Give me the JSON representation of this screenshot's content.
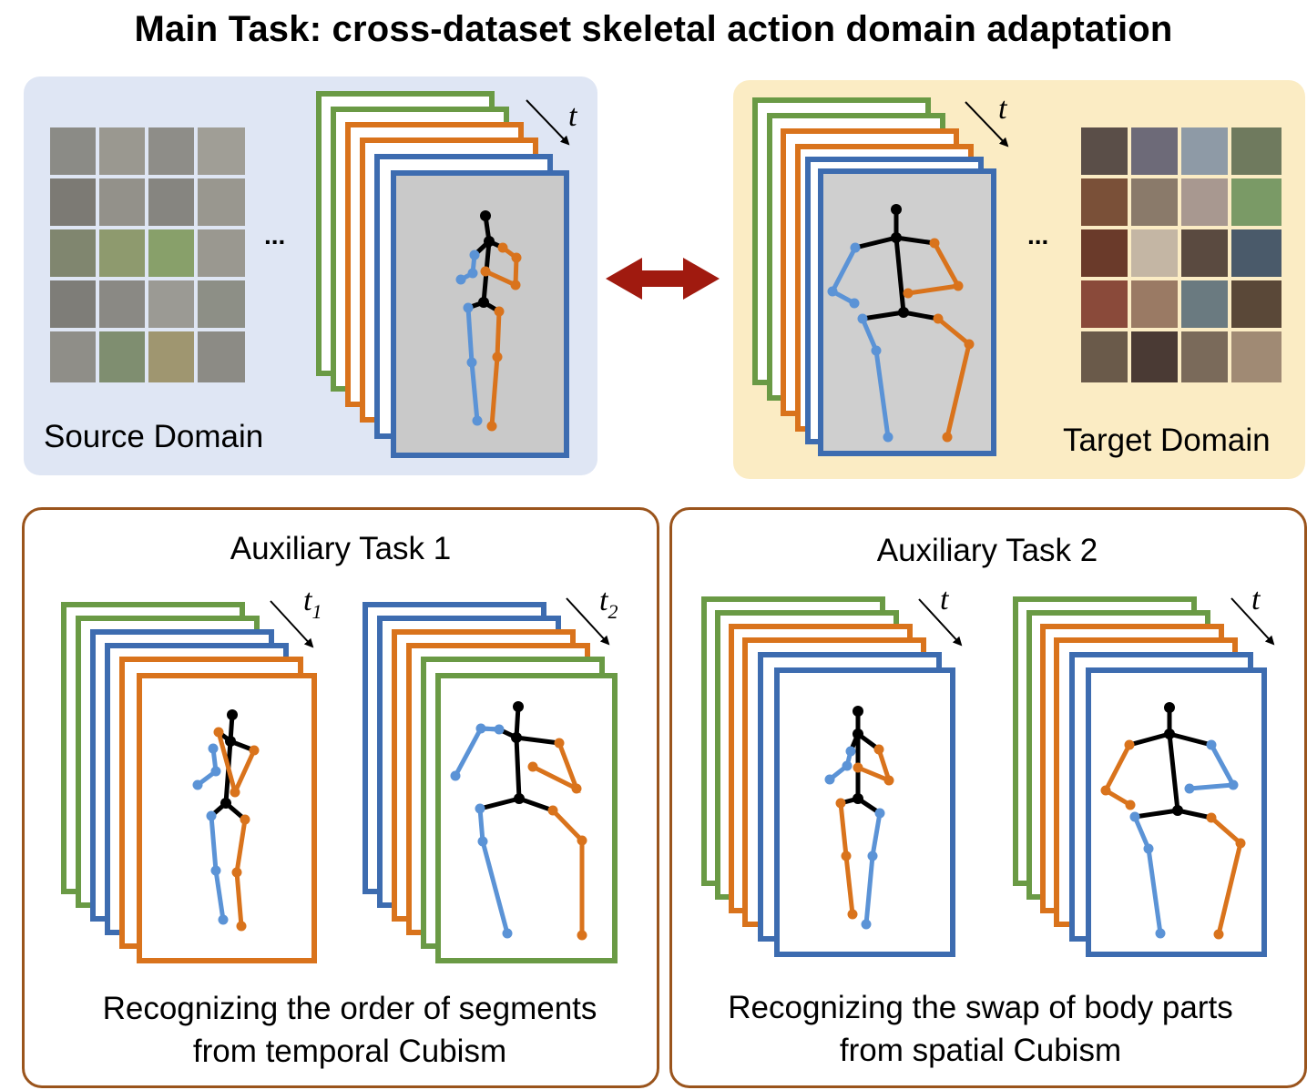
{
  "title": "Main Task: cross-dataset skeletal action domain adaptation",
  "main": {
    "source_label": "Source Domain",
    "target_label": "Target Domain",
    "ellipsis": "...",
    "time_symbol": "t"
  },
  "aux1": {
    "title": "Auxiliary Task 1",
    "caption_line1": "Recognizing the order of segments",
    "caption_line2": "from temporal Cubism",
    "time_symbol_a": "t",
    "time_sub_a": "1",
    "time_symbol_b": "t",
    "time_sub_b": "2"
  },
  "aux2": {
    "title": "Auxiliary Task 2",
    "caption_line1": "Recognizing the swap of body parts",
    "caption_line2": "from spatial Cubism",
    "time_symbol": "t"
  },
  "colors": {
    "green": "#6a9a45",
    "orange": "#d9731c",
    "blue": "#3d6cb0",
    "light_blue": "#5b93d6",
    "arrow_red": "#a01a0f",
    "aux_border": "#9a541c"
  }
}
